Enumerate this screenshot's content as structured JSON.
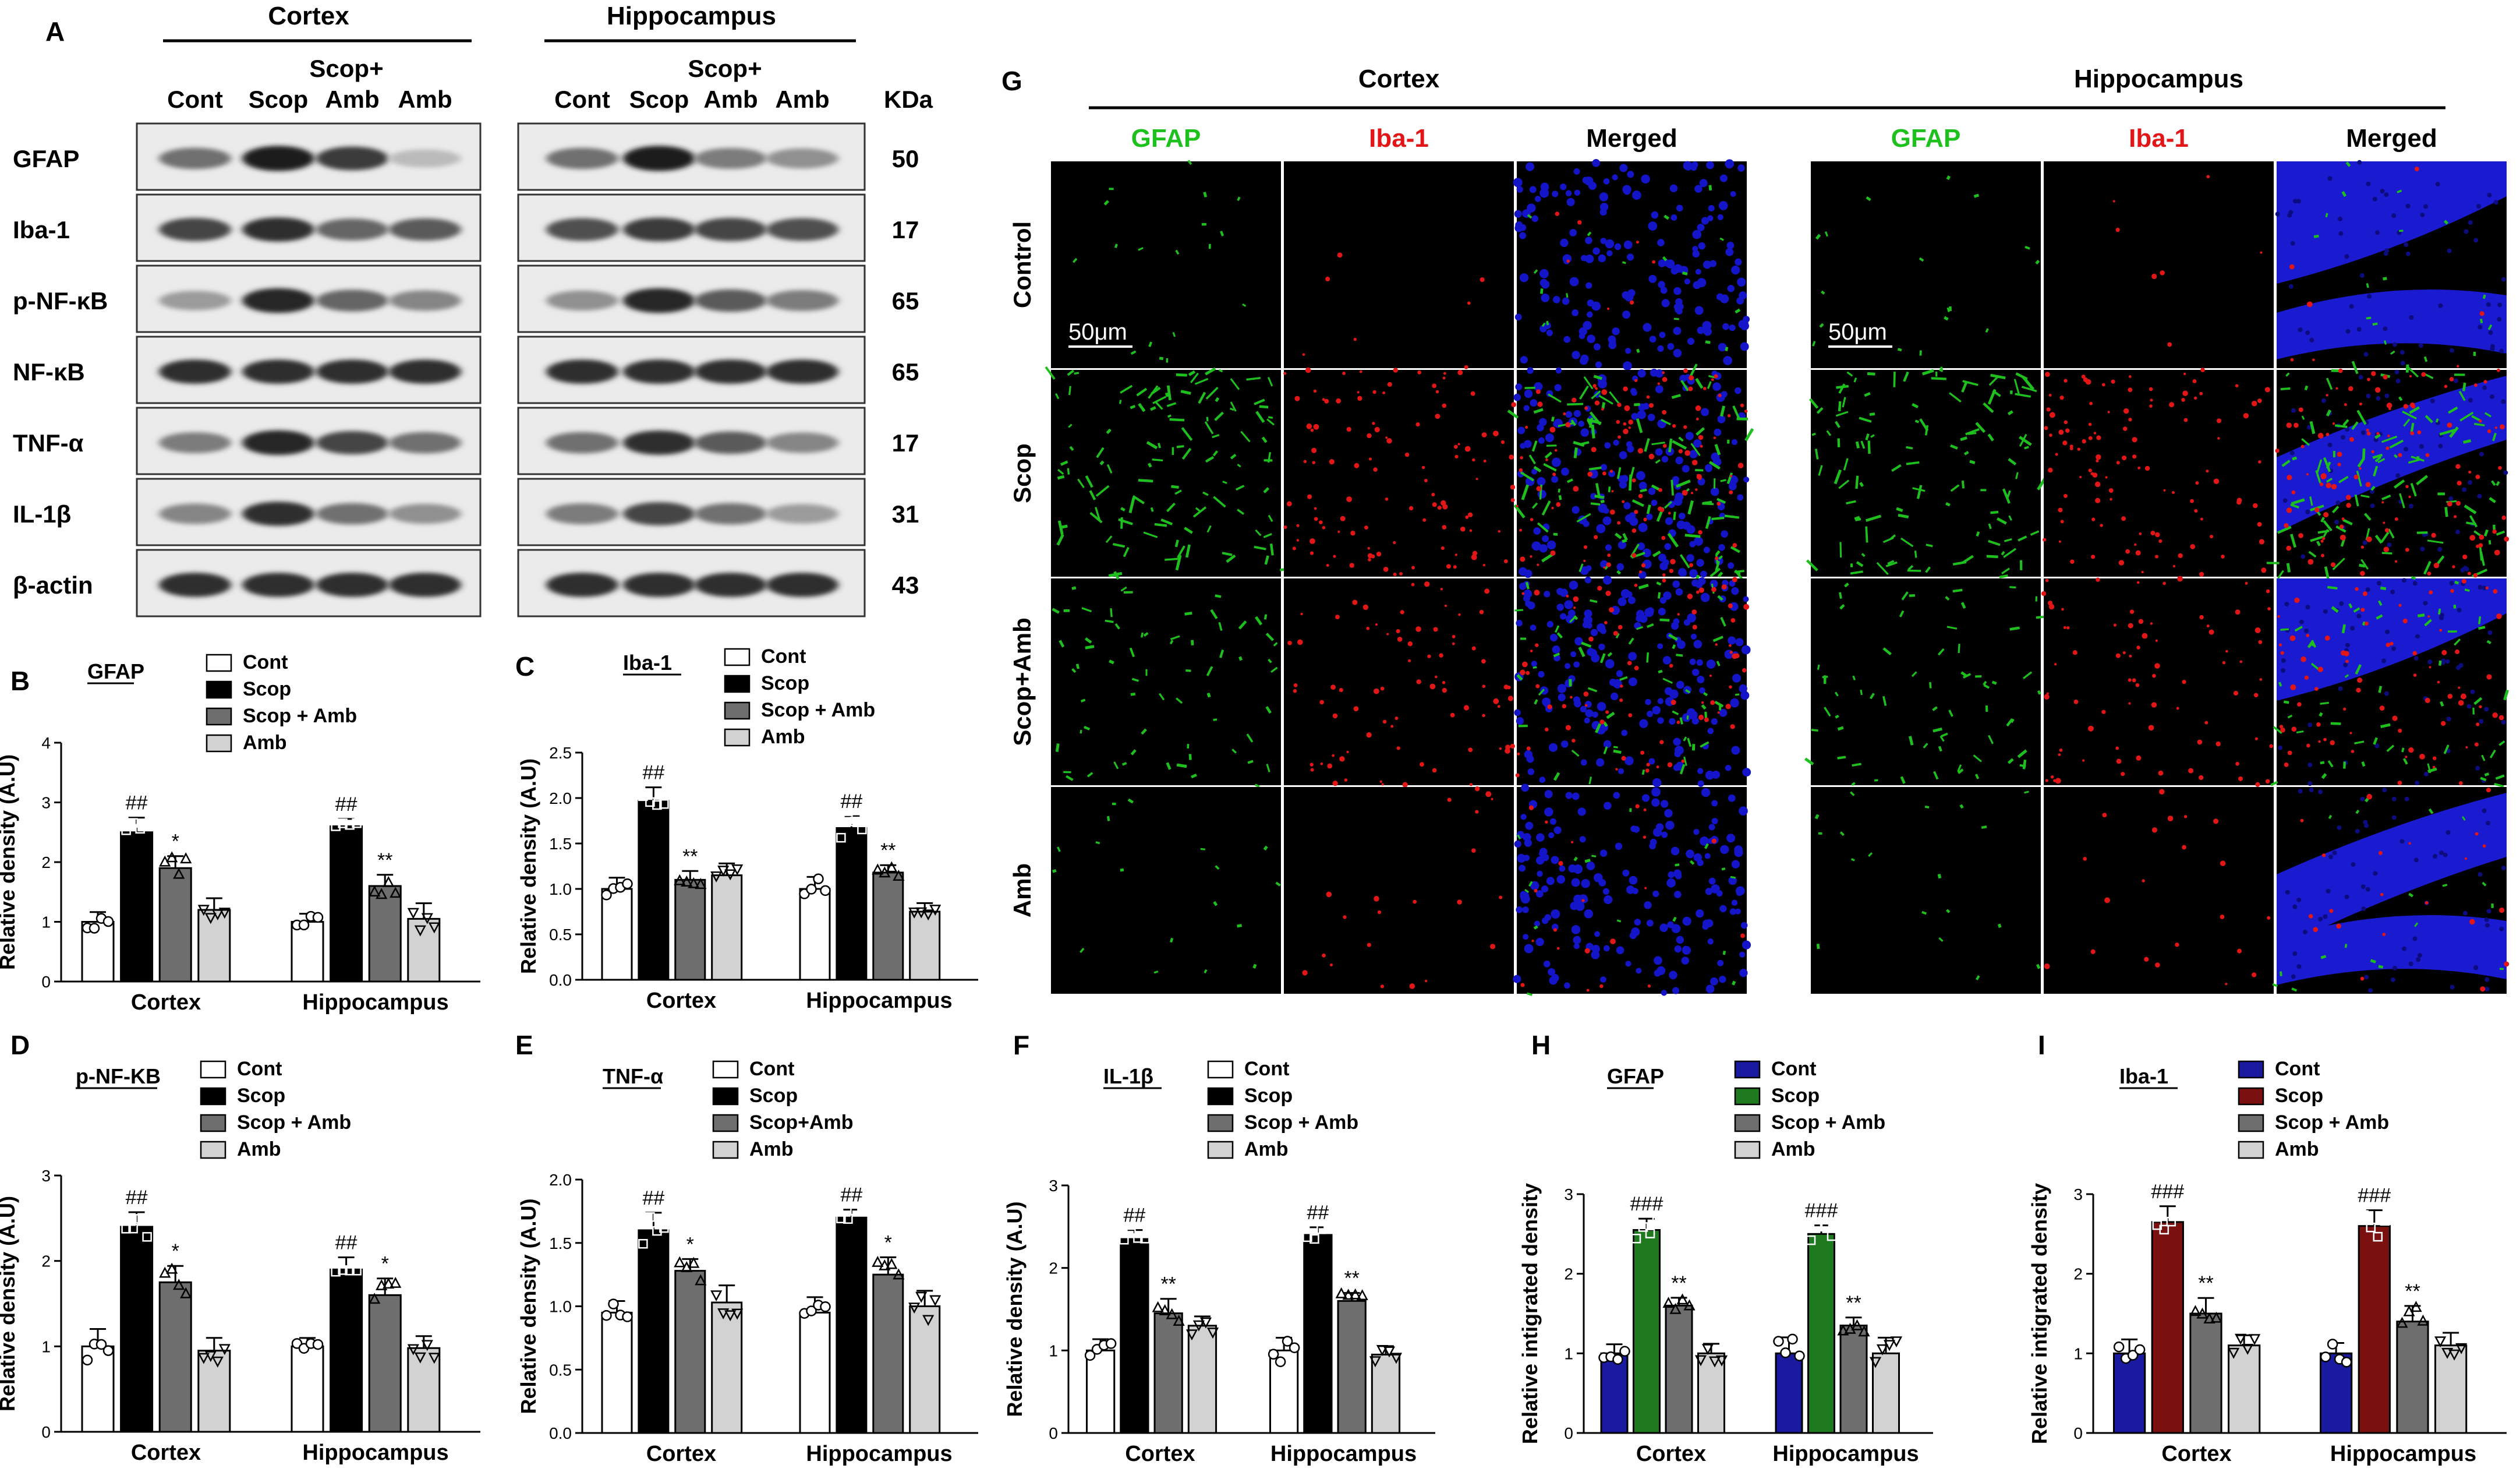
{
  "colors": {
    "cont": "#ffffff",
    "scop": "#000000",
    "scopamb": "#6e6e6e",
    "amb": "#d2d2d2",
    "navy": "#1a1aa0",
    "green": "#1f7a1f",
    "darkred": "#7a1010",
    "gfap_green": "#1ec01e",
    "iba_red": "#e21616",
    "blot_bg": "#ebebeb"
  },
  "panel_a": {
    "letter": "A",
    "groups": [
      {
        "title": "Cortex",
        "lanes": [
          "Cont",
          "Scop",
          "Scop+\nAmb",
          "Amb"
        ]
      },
      {
        "title": "Hippocampus",
        "lanes": [
          "Cont",
          "Scop",
          "Scop+\nAmb",
          "Amb"
        ]
      }
    ],
    "scop_plus": "Scop+",
    "amb_under": "Amb",
    "kda_label": "KDa",
    "rows": [
      {
        "protein": "GFAP",
        "kda": "50"
      },
      {
        "protein": "Iba-1",
        "kda": "17"
      },
      {
        "protein": "p-NF-κB",
        "kda": "65"
      },
      {
        "protein": "NF-κB",
        "kda": "65"
      },
      {
        "protein": "TNF-α",
        "kda": "17"
      },
      {
        "protein": "IL-1β",
        "kda": "31"
      },
      {
        "protein": "β-actin",
        "kda": "43"
      }
    ]
  },
  "panel_g": {
    "letter": "G",
    "groups": [
      "Cortex",
      "Hippocampus"
    ],
    "columns": [
      "GFAP",
      "Iba-1",
      "Merged"
    ],
    "rows": [
      "Control",
      "Scop",
      "Scop+Amb",
      "Amb"
    ],
    "scale_bar": "50μm"
  },
  "chart_data": [
    {
      "id": "B",
      "type": "bar",
      "title": "GFAP",
      "ylabel": "Relative density (A.U)",
      "ylim": [
        0,
        4
      ],
      "yticks": [
        "0",
        "1",
        "2",
        "3",
        "4"
      ],
      "categories": [
        "Cortex",
        "Hippocampus"
      ],
      "legend": [
        "Cont",
        "Scop",
        "Scop + Amb",
        "Amb"
      ],
      "series": [
        {
          "name": "Cont",
          "values": [
            1.0,
            1.0
          ]
        },
        {
          "name": "Scop",
          "values": [
            2.5,
            2.6
          ]
        },
        {
          "name": "Scop + Amb",
          "values": [
            1.9,
            1.6
          ]
        },
        {
          "name": "Amb",
          "values": [
            1.2,
            1.05
          ]
        }
      ],
      "annotations": [
        [
          "##",
          "*"
        ],
        [
          "##",
          "**"
        ]
      ]
    },
    {
      "id": "C",
      "type": "bar",
      "title": "Iba-1",
      "ylabel": "Relative density (A.U)",
      "ylim": [
        0,
        2.5
      ],
      "yticks": [
        "0.0",
        "0.5",
        "1.0",
        "1.5",
        "2.0",
        "2.5"
      ],
      "categories": [
        "Cortex",
        "Hippocampus"
      ],
      "legend": [
        "Cont",
        "Scop",
        "Scop + Amb",
        "Amb"
      ],
      "series": [
        {
          "name": "Cont",
          "values": [
            1.0,
            1.0
          ]
        },
        {
          "name": "Scop",
          "values": [
            1.97,
            1.67
          ]
        },
        {
          "name": "Scop + Amb",
          "values": [
            1.1,
            1.18
          ]
        },
        {
          "name": "Amb",
          "values": [
            1.15,
            0.75
          ]
        }
      ],
      "annotations": [
        [
          "##",
          "**"
        ],
        [
          "##",
          "**"
        ]
      ]
    },
    {
      "id": "D",
      "type": "bar",
      "title": "p-NF-KB",
      "ylabel": "Relative density (A.U)",
      "ylim": [
        0,
        3
      ],
      "yticks": [
        "0",
        "1",
        "2",
        "3"
      ],
      "categories": [
        "Cortex",
        "Hippocampus"
      ],
      "legend": [
        "Cont",
        "Scop",
        "Scop + Amb",
        "Amb"
      ],
      "series": [
        {
          "name": "Cont",
          "values": [
            1.0,
            1.0
          ]
        },
        {
          "name": "Scop",
          "values": [
            2.4,
            1.9
          ]
        },
        {
          "name": "Scop + Amb",
          "values": [
            1.75,
            1.6
          ]
        },
        {
          "name": "Amb",
          "values": [
            0.95,
            0.98
          ]
        }
      ],
      "annotations": [
        [
          "##",
          "*"
        ],
        [
          "##",
          "*"
        ]
      ]
    },
    {
      "id": "E",
      "type": "bar",
      "title": "TNF-α",
      "ylabel": "Relative density (A.U)",
      "ylim": [
        0,
        2.0
      ],
      "yticks": [
        "0.0",
        "0.5",
        "1.0",
        "1.5",
        "2.0"
      ],
      "categories": [
        "Cortex",
        "Hippocampus"
      ],
      "legend": [
        "Cont",
        "Scop",
        "Scop+Amb",
        "Amb"
      ],
      "series": [
        {
          "name": "Cont",
          "values": [
            0.95,
            0.95
          ]
        },
        {
          "name": "Scop",
          "values": [
            1.6,
            1.7
          ]
        },
        {
          "name": "Scop+Amb",
          "values": [
            1.28,
            1.25
          ]
        },
        {
          "name": "Amb",
          "values": [
            1.03,
            1.0
          ]
        }
      ],
      "annotations": [
        [
          "##",
          "*"
        ],
        [
          "##",
          "*"
        ]
      ]
    },
    {
      "id": "F",
      "type": "bar",
      "title": "IL-1β",
      "ylabel": "Relative density (A.U)",
      "ylim": [
        0,
        3
      ],
      "yticks": [
        "0",
        "1",
        "2",
        "3"
      ],
      "categories": [
        "Cortex",
        "Hippocampus"
      ],
      "legend": [
        "Cont",
        "Scop",
        "Scop + Amb",
        "Amb"
      ],
      "series": [
        {
          "name": "Cont",
          "values": [
            1.0,
            1.0
          ]
        },
        {
          "name": "Scop",
          "values": [
            2.35,
            2.4
          ]
        },
        {
          "name": "Scop + Amb",
          "values": [
            1.45,
            1.6
          ]
        },
        {
          "name": "Amb",
          "values": [
            1.3,
            0.95
          ]
        }
      ],
      "annotations": [
        [
          "##",
          "**"
        ],
        [
          "##",
          "**"
        ]
      ]
    },
    {
      "id": "H",
      "type": "bar",
      "title": "GFAP",
      "ylabel": "Relative intigrated density",
      "ylim": [
        0,
        3
      ],
      "yticks": [
        "0",
        "1",
        "2",
        "3"
      ],
      "categories": [
        "Cortex",
        "Hippocampus"
      ],
      "legend": [
        "Cont",
        "Scop",
        "Scop + Amb",
        "Amb"
      ],
      "series": [
        {
          "name": "Cont",
          "values": [
            1.0,
            1.0
          ]
        },
        {
          "name": "Scop",
          "values": [
            2.55,
            2.5
          ]
        },
        {
          "name": "Scop + Amb",
          "values": [
            1.6,
            1.35
          ]
        },
        {
          "name": "Amb",
          "values": [
            1.0,
            1.0
          ]
        }
      ],
      "annotations": [
        [
          "###",
          "**"
        ],
        [
          "###",
          "**"
        ]
      ]
    },
    {
      "id": "I",
      "type": "bar",
      "title": "Iba-1",
      "ylabel": "Relative intigrated density",
      "ylim": [
        0,
        3
      ],
      "yticks": [
        "0",
        "1",
        "2",
        "3"
      ],
      "categories": [
        "Cortex",
        "Hippocampus"
      ],
      "legend": [
        "Cont",
        "Scop",
        "Scop + Amb",
        "Amb"
      ],
      "series": [
        {
          "name": "Cont",
          "values": [
            1.0,
            1.0
          ]
        },
        {
          "name": "Scop",
          "values": [
            2.65,
            2.6
          ]
        },
        {
          "name": "Scop + Amb",
          "values": [
            1.5,
            1.4
          ]
        },
        {
          "name": "Amb",
          "values": [
            1.1,
            1.1
          ]
        }
      ],
      "annotations": [
        [
          "###",
          "**"
        ],
        [
          "###",
          "**"
        ]
      ]
    }
  ]
}
